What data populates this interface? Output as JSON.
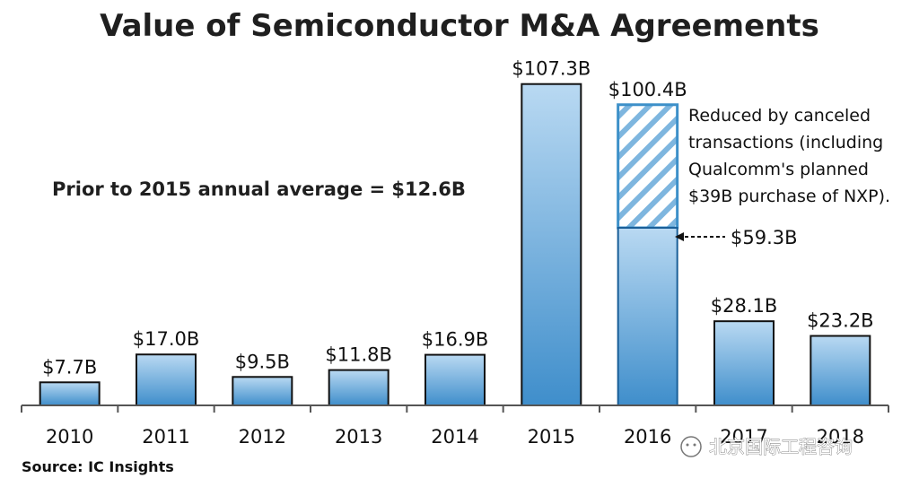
{
  "chart_data": {
    "type": "bar",
    "title": "Value of Semiconductor M&A Agreements",
    "categories": [
      "2010",
      "2011",
      "2012",
      "2013",
      "2014",
      "2015",
      "2016",
      "2017",
      "2018"
    ],
    "values": [
      7.7,
      17.0,
      9.5,
      11.8,
      16.9,
      107.3,
      100.4,
      28.1,
      23.2
    ],
    "value_labels": [
      "$7.7B",
      "$17.0B",
      "$9.5B",
      "$11.8B",
      "$16.9B",
      "$107.3B",
      "$100.4B",
      "$28.1B",
      "$23.2B"
    ],
    "segment_2016": {
      "completed_value": 59.3,
      "completed_label": "$59.3B",
      "canceled_value": 41.1,
      "note_lines": [
        "Reduced by canceled",
        "transactions (including",
        "Qualcomm's planned",
        "$39B purchase of NXP)."
      ]
    },
    "annotation": "Prior to 2015 annual average = $12.6B",
    "source": "Source: IC Insights",
    "watermark": "北京国际工程咨询",
    "ylim": [
      0,
      115
    ],
    "grid": false,
    "colors": {
      "bar_light": "#b7d6ee",
      "bar_dark": "#3f8ecb",
      "bar_border": "#111111",
      "hatch_border": "#3d90c9",
      "axis": "#555555"
    }
  }
}
